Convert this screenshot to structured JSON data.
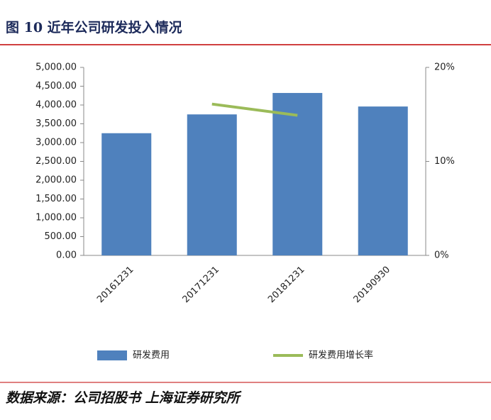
{
  "title": "图 10 近年公司研发投入情况",
  "source": "数据来源：公司招股书 上海证券研究所",
  "chart_data": {
    "type": "bar",
    "categories": [
      "20161231",
      "20171231",
      "20181231",
      "20190930"
    ],
    "series": [
      {
        "name": "研发费用",
        "type": "bar",
        "color": "#4f81bd",
        "values": [
          3250,
          3750,
          4320,
          3960
        ]
      },
      {
        "name": "研发费用增长率",
        "type": "line",
        "axis": "y2",
        "color": "#9bbb59",
        "values": [
          null,
          16.1,
          14.9,
          null
        ]
      }
    ],
    "ylim": [
      0,
      5000
    ],
    "yticks": [
      {
        "value": 0,
        "label": "0.00"
      },
      {
        "value": 500,
        "label": "500.00"
      },
      {
        "value": 1000,
        "label": "1,000.00"
      },
      {
        "value": 1500,
        "label": "1,500.00"
      },
      {
        "value": 2000,
        "label": "2,000.00"
      },
      {
        "value": 2500,
        "label": "2,500.00"
      },
      {
        "value": 3000,
        "label": "3,000.00"
      },
      {
        "value": 3500,
        "label": "3,500.00"
      },
      {
        "value": 4000,
        "label": "4,000.00"
      },
      {
        "value": 4500,
        "label": "4,500.00"
      },
      {
        "value": 5000,
        "label": "5,000.00"
      }
    ],
    "y2lim": [
      0,
      20
    ],
    "y2ticks": [
      {
        "value": 0,
        "label": "0%"
      },
      {
        "value": 10,
        "label": "10%"
      },
      {
        "value": 20,
        "label": "20%"
      }
    ],
    "legend": "bottom"
  }
}
